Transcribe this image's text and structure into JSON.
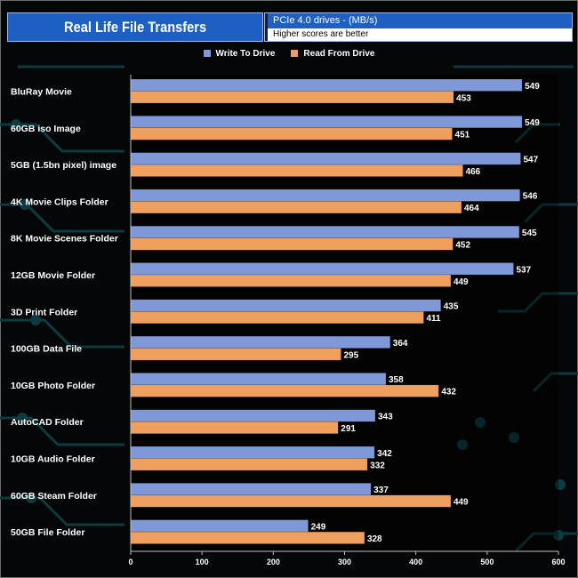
{
  "chart_data": {
    "type": "bar",
    "orientation": "horizontal",
    "title": "Real Life File Transfers",
    "subtitle": "PCIe 4.0 drives - (MB/s)",
    "note": "Higher scores are better",
    "categories": [
      "BluRay Movie",
      "60GB iso Image",
      "5GB (1.5bn pixel) image",
      "4K Movie Clips Folder",
      "8K Movie Scenes Folder",
      "12GB Movie Folder",
      "3D Print Folder",
      "100GB Data File",
      "10GB Photo Folder",
      "AutoCAD Folder",
      "10GB Audio Folder",
      "60GB Steam Folder",
      "50GB File Folder"
    ],
    "series": [
      {
        "name": "Write To  Drive",
        "color": "#7f98d8",
        "values": [
          549,
          549,
          547,
          546,
          545,
          537,
          435,
          364,
          358,
          343,
          342,
          337,
          249
        ]
      },
      {
        "name": "Read From  Drive",
        "color": "#f0a05e",
        "values": [
          453,
          451,
          466,
          464,
          452,
          449,
          411,
          295,
          432,
          291,
          332,
          449,
          328
        ]
      }
    ],
    "xlim": [
      0,
      600
    ],
    "xticks": [
      "0",
      "100",
      "200",
      "300",
      "400",
      "500",
      "600"
    ],
    "legend_position": "top"
  }
}
